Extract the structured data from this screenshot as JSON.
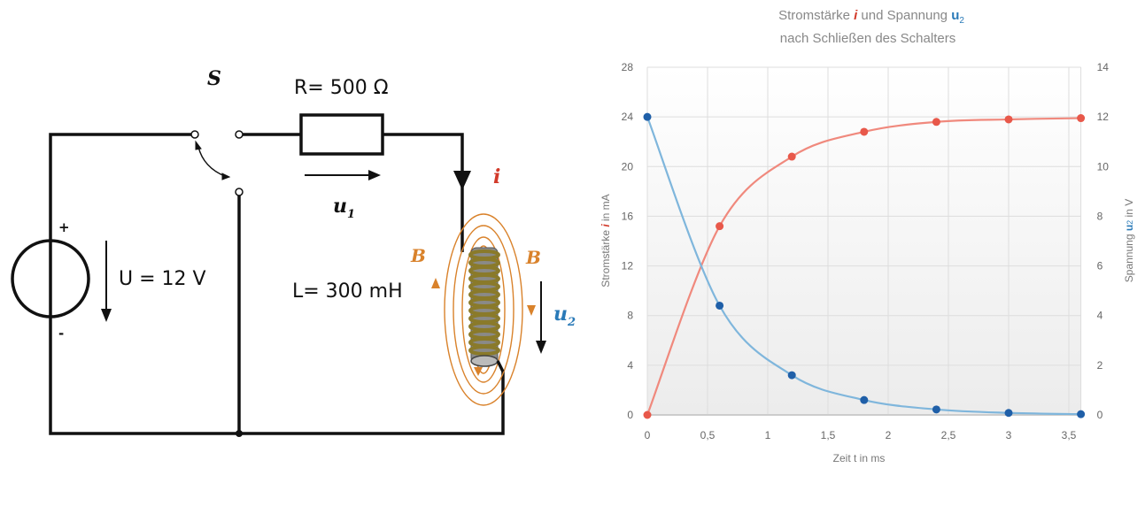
{
  "circuit": {
    "switch_label": "S",
    "resistor_label": "R= 500 Ω",
    "u1_label": "u",
    "u1_sub": "1",
    "current_label": "i",
    "source_label": "U = 12 V",
    "plus_label": "+",
    "minus_label": "-",
    "inductor_label": "L= 300 mH",
    "field_label_left": "B",
    "field_label_right": "B",
    "u2_label": "u",
    "u2_sub": "2",
    "colors": {
      "wire": "#111111",
      "current": "#d23a2a",
      "field": "#d9822b",
      "voltage": "#2a7ab8"
    }
  },
  "chart_data": {
    "type": "line",
    "title_parts": [
      "Stromstärke ",
      "i",
      "  und Spannung ",
      "u",
      "2"
    ],
    "subtitle": "nach Schließen des Schalters",
    "xlabel": "Zeit t  in ms",
    "ylabel_parts": [
      "Stromstärke ",
      "i",
      "  in mA"
    ],
    "y2label_parts": [
      "Spannung ",
      "u",
      "2",
      " in V"
    ],
    "xlim": [
      0,
      3.6
    ],
    "ylim": [
      0,
      28
    ],
    "y2lim": [
      0,
      14
    ],
    "x_ticks": [
      "0",
      "0,5",
      "1",
      "1,5",
      "2",
      "2,5",
      "3",
      "3,5"
    ],
    "y_ticks": [
      "0",
      "4",
      "8",
      "12",
      "16",
      "20",
      "24",
      "28"
    ],
    "y2_ticks": [
      "0",
      "2",
      "4",
      "6",
      "8",
      "10",
      "12",
      "14"
    ],
    "grid": true,
    "x": [
      0,
      0.6,
      1.2,
      1.8,
      2.4,
      3.0,
      3.6
    ],
    "series": [
      {
        "axis": "left",
        "color": "#e8584a",
        "line_color": "#f0897d",
        "values": [
          0,
          15.2,
          20.8,
          22.8,
          23.6,
          23.8,
          23.9
        ]
      },
      {
        "axis": "right",
        "color": "#1f5fa8",
        "line_color": "#7fb6dc",
        "values": [
          12,
          4.4,
          1.6,
          0.6,
          0.22,
          0.08,
          0.03
        ]
      }
    ]
  }
}
